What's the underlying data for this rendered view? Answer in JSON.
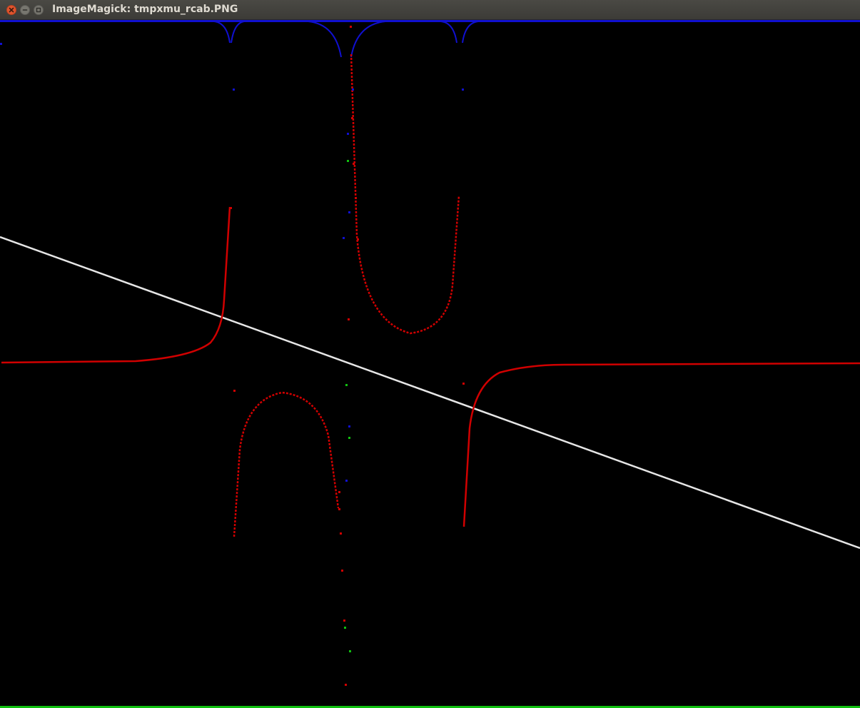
{
  "window": {
    "title": "ImageMagick: tmpxmu_rcab.PNG",
    "buttons": {
      "close": "close-icon",
      "minimize": "minimize-icon",
      "maximize": "maximize-icon"
    }
  },
  "colors": {
    "background": "#000000",
    "red_curve": "#d00000",
    "white_line": "#e6e6e6",
    "blue_curve": "#1010d0",
    "green_curve": "#10c010"
  }
}
